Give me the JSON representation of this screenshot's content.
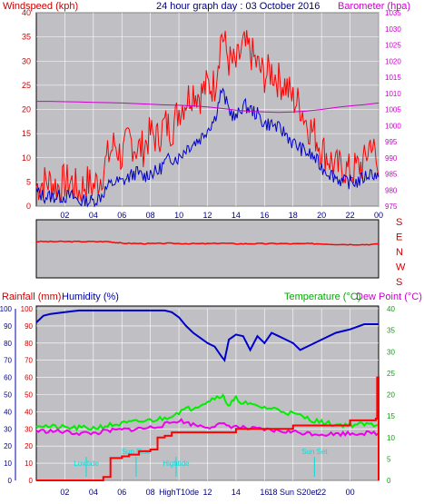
{
  "header": {
    "title": "24 hour graph day : 03 October 2016",
    "left_label": "Windspeed (kph)",
    "right_label": "Barometer (hpa)"
  },
  "colors": {
    "frame_bg": "#ffffff",
    "plot_bg": "#c0c0c4",
    "grid": "#ffffff",
    "wind": "#ff0000",
    "gust": "#ff0000",
    "wind_avg": "#0000cc",
    "barometer": "#cc00cc",
    "direction": "#ff0000",
    "humidity": "#0000cc",
    "temperature": "#00ee00",
    "dewpoint": "#ee00ee",
    "rainfall": "#ff0000",
    "tide_markers": "#00dddd",
    "left_axis_text": "#cc0000",
    "right_axis_text": "#cc00cc",
    "temp_axis_text": "#00aa00",
    "humidity_axis_text": "#0000aa"
  },
  "chart_data": [
    {
      "type": "line",
      "panel": "wind_barometer",
      "x_ticks": [
        "02",
        "04",
        "06",
        "08",
        "10",
        "12",
        "14",
        "16",
        "18",
        "20",
        "22",
        "00"
      ],
      "xlim": [
        0,
        24
      ],
      "ylim_left": [
        0,
        40
      ],
      "ylim_right": [
        975,
        1035
      ],
      "y_ticks_left": [
        "0",
        "5",
        "10",
        "15",
        "20",
        "25",
        "30",
        "35",
        "40"
      ],
      "y_ticks_right": [
        "975",
        "980",
        "985",
        "990",
        "995",
        "1000",
        "1005",
        "1010",
        "1015",
        "1020",
        "1025",
        "1030",
        "1035"
      ],
      "series": [
        {
          "name": "Gust",
          "axis": "left",
          "x": [
            0,
            0.5,
            1,
            1.5,
            2,
            2.5,
            3,
            3.5,
            4,
            4.5,
            5,
            5.5,
            6,
            6.5,
            7,
            7.5,
            8,
            8.5,
            9,
            9.5,
            10,
            10.5,
            11,
            11.5,
            12,
            12.5,
            13,
            13.5,
            14,
            14.5,
            15,
            15.5,
            16,
            16.5,
            17,
            17.5,
            18,
            18.5,
            19,
            19.5,
            20,
            20.5,
            21,
            21.5,
            22,
            22.5,
            23,
            23.5,
            24
          ],
          "values": [
            4,
            5,
            5,
            4,
            5,
            5,
            3,
            5,
            4,
            6,
            10,
            13,
            10,
            14,
            12,
            12,
            15,
            14,
            17,
            16,
            20,
            22,
            24,
            23,
            25,
            25,
            36,
            30,
            29,
            33,
            32,
            29,
            27,
            28,
            26,
            25,
            22,
            21,
            17,
            15,
            12,
            10,
            8,
            8,
            7,
            8,
            9,
            14,
            6
          ]
        },
        {
          "name": "Wind",
          "axis": "left",
          "x": [
            0,
            0.5,
            1,
            1.5,
            2,
            2.5,
            3,
            3.5,
            4,
            4.5,
            5,
            5.5,
            6,
            6.5,
            7,
            7.5,
            8,
            8.5,
            9,
            9.5,
            10,
            10.5,
            11,
            11.5,
            12,
            12.5,
            13,
            13.5,
            14,
            14.5,
            15,
            15.5,
            16,
            16.5,
            17,
            17.5,
            18,
            18.5,
            19,
            19.5,
            20,
            20.5,
            21,
            21.5,
            22,
            22.5,
            23,
            23.5,
            24
          ],
          "values": [
            3,
            2,
            2,
            2,
            2,
            2,
            1,
            1,
            1,
            2,
            4,
            5,
            5,
            6,
            7,
            6,
            7,
            7,
            9,
            10,
            10,
            12,
            13,
            14,
            16,
            18,
            24,
            20,
            18,
            21,
            20,
            19,
            17,
            17,
            16,
            15,
            13,
            12,
            11,
            10,
            8,
            7,
            6,
            5,
            5,
            5,
            6,
            7,
            6
          ]
        },
        {
          "name": "Barometer",
          "axis": "right",
          "x": [
            0,
            1,
            2,
            3,
            4,
            5,
            6,
            7,
            8,
            9,
            10,
            11,
            12,
            13,
            14,
            15,
            16,
            17,
            18,
            19,
            20,
            21,
            22,
            23,
            24
          ],
          "values": [
            1007.5,
            1007.5,
            1007.4,
            1007.3,
            1007.2,
            1007.1,
            1007.0,
            1006.8,
            1006.6,
            1006.4,
            1006.3,
            1006.1,
            1005.8,
            1005.3,
            1004.8,
            1004.4,
            1004.2,
            1004.1,
            1004.2,
            1004.5,
            1005.0,
            1005.6,
            1006.1,
            1006.5,
            1007.0
          ]
        }
      ]
    },
    {
      "type": "line",
      "panel": "wind_direction",
      "y_ticks": [
        "S",
        "E",
        "N",
        "W",
        "S"
      ],
      "series": [
        {
          "name": "Direction",
          "x": [
            0,
            1,
            2,
            3,
            4,
            5,
            5.5,
            6,
            7,
            8,
            9,
            10,
            11,
            12,
            13,
            14,
            15,
            16,
            17,
            18,
            19,
            20,
            21,
            22,
            23,
            24
          ],
          "values": [
            225,
            225,
            225,
            225,
            225,
            225,
            220,
            215,
            213,
            212,
            214,
            213,
            212,
            212,
            215,
            211,
            212,
            212,
            213,
            211,
            212,
            211,
            208,
            207,
            206,
            209
          ]
        }
      ]
    },
    {
      "type": "line",
      "panel": "rain_humidity_temperature",
      "left_label_1": "Rainfall (mm)",
      "left_label_2": "Humidity (%)",
      "right_label_1": "Temperature (°C)",
      "right_label_2": "Dew Point (°C)",
      "x_ticks": [
        "02",
        "04",
        "06",
        "08",
        "HighT10de",
        "12",
        "14",
        "16",
        "18 Sun S20et",
        "22",
        "00"
      ],
      "xlim": [
        0,
        24
      ],
      "ylim_humidity": [
        0,
        100
      ],
      "ylim_rain": [
        0,
        100
      ],
      "ylim_temp": [
        0,
        40
      ],
      "y_ticks_humidity": [
        "0",
        "10",
        "20",
        "30",
        "40",
        "50",
        "60",
        "70",
        "80",
        "90",
        "100"
      ],
      "y_ticks_rain": [
        "0",
        "10",
        "20",
        "30",
        "40",
        "50",
        "60",
        "70",
        "80",
        "90",
        "100"
      ],
      "y_ticks_temp": [
        "0",
        "5",
        "10",
        "15",
        "20",
        "25",
        "30",
        "35",
        "40"
      ],
      "annotations": [
        {
          "label": "Lowtide",
          "x": 3.5
        },
        {
          "label": "Sun Rise",
          "x": 7.0
        },
        {
          "label": "Hightide",
          "x": 9.8
        },
        {
          "label": "Sun Set",
          "x": 19.5
        }
      ],
      "series": [
        {
          "name": "Humidity",
          "axis": "humidity",
          "x": [
            0,
            0.5,
            1,
            2,
            3,
            4,
            5,
            6,
            7,
            8,
            9,
            9.5,
            10,
            10.5,
            11,
            11.5,
            12,
            12.5,
            13,
            13.2,
            13.5,
            14,
            14.5,
            15,
            15.5,
            16,
            16.5,
            17,
            17.5,
            18,
            18.5,
            19,
            20,
            21,
            22,
            23,
            24
          ],
          "values": [
            92,
            96,
            97,
            98,
            99,
            99,
            99,
            99,
            99,
            99,
            99,
            98,
            95,
            90,
            86,
            83,
            80,
            78,
            72,
            70,
            82,
            85,
            84,
            76,
            84,
            80,
            86,
            84,
            82,
            80,
            76,
            78,
            82,
            86,
            88,
            91,
            91
          ]
        },
        {
          "name": "Temperature",
          "axis": "temp",
          "x": [
            0,
            1,
            2,
            3,
            4,
            5,
            6,
            7,
            8,
            9,
            10,
            11,
            12,
            13,
            13.5,
            14,
            15,
            16,
            17,
            18,
            19,
            20,
            21,
            22,
            23,
            24
          ],
          "values": [
            13.0,
            12.5,
            12.3,
            12.2,
            12.2,
            12.8,
            13.2,
            13.6,
            14.0,
            14.5,
            16.0,
            17.0,
            18.5,
            20.0,
            17.5,
            19.0,
            17.5,
            17.0,
            16.5,
            15.5,
            14.5,
            13.5,
            13.0,
            13.0,
            13.0,
            13.0
          ]
        },
        {
          "name": "Dew Point",
          "axis": "temp",
          "x": [
            0,
            1,
            2,
            3,
            4,
            5,
            6,
            7,
            8,
            9,
            10,
            11,
            12,
            13,
            14,
            15,
            16,
            17,
            18,
            19,
            20,
            21,
            22,
            23,
            24
          ],
          "values": [
            11.5,
            11.5,
            11.3,
            11.0,
            11.0,
            11.5,
            11.8,
            12.0,
            12.3,
            13.0,
            14.0,
            13.0,
            12.5,
            13.0,
            12.5,
            12.0,
            11.8,
            11.5,
            11.3,
            11.0,
            10.8,
            10.8,
            11.0,
            11.0,
            11.0
          ]
        },
        {
          "name": "Rainfall",
          "axis": "rain",
          "x": [
            0,
            4.5,
            4.7,
            5,
            5.2,
            6,
            6.5,
            7,
            7.2,
            8,
            8.5,
            9,
            9.5,
            10,
            14,
            18,
            22,
            23.8,
            23.9,
            24
          ],
          "values": [
            0,
            0,
            2,
            2,
            13,
            14,
            15,
            15,
            17,
            18,
            25,
            26,
            28,
            28,
            30,
            32,
            35,
            36,
            60,
            0
          ]
        }
      ]
    }
  ]
}
